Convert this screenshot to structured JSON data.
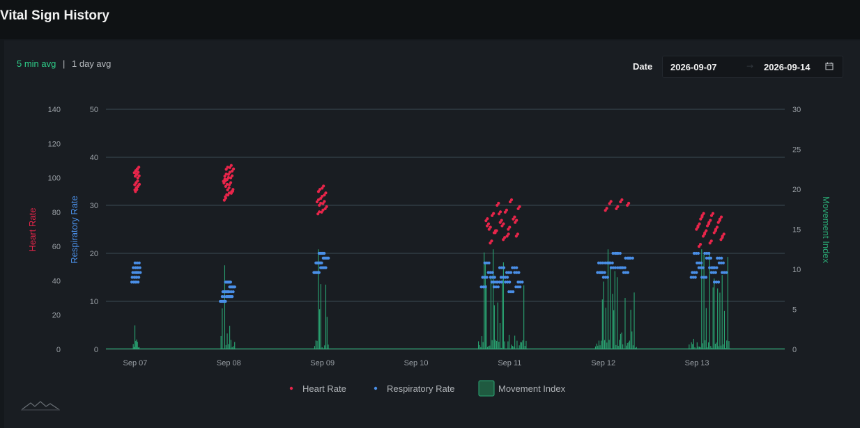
{
  "page_title": "Vital Sign History",
  "avg_toggle": {
    "active": "5 min avg",
    "separator": "|",
    "inactive": "1 day avg"
  },
  "date_filter": {
    "label": "Date",
    "start": "2026-09-07",
    "arrow": "→",
    "end": "2026-09-14"
  },
  "icons": {
    "calendar": "calendar-icon",
    "logo": "mountain-logo-icon"
  },
  "chart_data": {
    "type": "scatter",
    "x_domain": [
      "2026-09-06 16:30",
      "2026-09-13 22:30"
    ],
    "x_ticks": [
      {
        "label": "Sep 07",
        "date": "2026-09-07 00:00"
      },
      {
        "label": "Sep 08",
        "date": "2026-09-08 00:00"
      },
      {
        "label": "Sep 09",
        "date": "2026-09-09 00:00"
      },
      {
        "label": "Sep 10",
        "date": "2026-09-10 00:00"
      },
      {
        "label": "Sep 11",
        "date": "2026-09-11 00:00"
      },
      {
        "label": "Sep 12",
        "date": "2026-09-12 00:00"
      },
      {
        "label": "Sep 13",
        "date": "2026-09-13 00:00"
      }
    ],
    "axes": {
      "heart_rate": {
        "label": "Heart Rate",
        "range": [
          0,
          140
        ],
        "ticks": [
          0,
          20,
          40,
          60,
          80,
          100,
          120,
          140
        ],
        "color": "#e8254a"
      },
      "respiratory_rate": {
        "label": "Respiratory Rate",
        "range": [
          0,
          50
        ],
        "ticks": [
          0,
          10,
          20,
          30,
          40,
          50
        ],
        "color": "#4a8fe7"
      },
      "movement_index": {
        "label": "Movement Index",
        "range": [
          0,
          30
        ],
        "ticks": [
          0,
          5,
          10,
          15,
          20,
          25,
          30
        ],
        "color": "#2aa874"
      }
    },
    "grid": true,
    "legend_position": "bottom-center",
    "legend": [
      "Heart Rate",
      "Respiratory Rate",
      "Movement Index"
    ],
    "clusters": [
      {
        "start": "2026-09-06 23:30",
        "end": "2026-09-07 01:00",
        "heart_rate": [
          96,
          97,
          100,
          101,
          102,
          103,
          104,
          105,
          93,
          94,
          95,
          92
        ],
        "respiratory_rate": [
          14,
          15,
          16,
          17,
          14,
          15,
          18,
          17,
          16
        ],
        "movement_peak": 3,
        "movement_max": 3
      },
      {
        "start": "2026-09-07 22:00",
        "end": "2026-09-08 01:30",
        "heart_rate": [
          87,
          90,
          92,
          95,
          96,
          98,
          99,
          100,
          101,
          102,
          104,
          105,
          106,
          97,
          93,
          91,
          89
        ],
        "respiratory_rate": [
          10,
          11,
          12,
          13,
          14,
          10,
          11,
          12,
          13,
          14,
          11,
          12
        ],
        "movement_peak": 10.5,
        "movement_max": 10.5
      },
      {
        "start": "2026-09-08 22:00",
        "end": "2026-09-09 01:30",
        "heart_rate": [
          79,
          80,
          82,
          84,
          85,
          86,
          88,
          90,
          92,
          94
        ],
        "respiratory_rate": [
          16,
          17,
          18,
          19,
          20,
          16,
          17,
          18,
          19,
          20,
          18
        ],
        "movement_peak": 12.5,
        "movement_max": 12.5
      },
      {
        "start": "2026-09-10 16:00",
        "end": "2026-09-11 04:30",
        "heart_rate": [
          62,
          64,
          66,
          68,
          70,
          72,
          74,
          76,
          78,
          80,
          82,
          84,
          86,
          70,
          72,
          74,
          68,
          66,
          75,
          79
        ],
        "respiratory_rate": [
          13,
          14,
          15,
          16,
          17,
          18,
          12,
          13,
          14,
          15,
          16,
          17,
          14,
          15,
          16,
          14,
          13,
          15
        ],
        "movement_peak": 12.5,
        "movement_max": 12.5
      },
      {
        "start": "2026-09-11 22:00",
        "end": "2026-09-12 08:30",
        "heart_rate": [
          81,
          82,
          84,
          85,
          86
        ],
        "respiratory_rate": [
          16,
          17,
          18,
          19,
          20,
          16,
          17,
          18,
          19,
          20,
          15,
          16,
          17,
          18
        ],
        "movement_peak": 12.5,
        "movement_max": 12.5
      },
      {
        "start": "2026-09-12 22:00",
        "end": "2026-09-13 08:30",
        "heart_rate": [
          60,
          62,
          64,
          66,
          68,
          70,
          72,
          74,
          76,
          78,
          66,
          68,
          70,
          72,
          74,
          76,
          78
        ],
        "respiratory_rate": [
          15,
          16,
          17,
          18,
          19,
          20,
          14,
          15,
          16,
          17,
          18,
          19,
          20,
          16,
          17
        ],
        "movement_peak": 12.5,
        "movement_max": 12.5
      }
    ]
  }
}
